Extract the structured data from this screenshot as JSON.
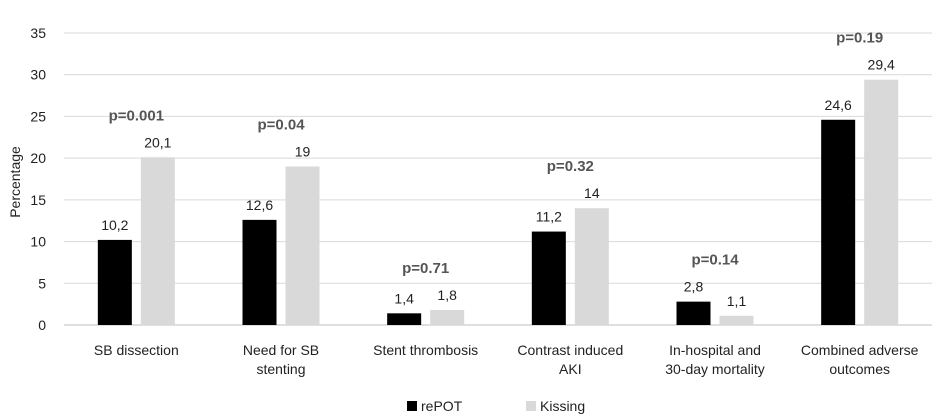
{
  "chart_data": {
    "type": "bar",
    "categories": [
      [
        "SB dissection"
      ],
      [
        "Need for SB",
        "stenting"
      ],
      [
        "Stent thrombosis"
      ],
      [
        "Contrast induced",
        "AKI"
      ],
      [
        "In-hospital and",
        "30-day mortality"
      ],
      [
        "Combined adverse",
        "outcomes"
      ]
    ],
    "series": [
      {
        "name": "rePOT",
        "color": "#000000",
        "values": [
          10.2,
          12.6,
          1.4,
          11.2,
          2.8,
          24.6
        ],
        "labels": [
          "10,2",
          "12,6",
          "1,4",
          "11,2",
          "2,8",
          "24,6"
        ]
      },
      {
        "name": "Kissing",
        "color": "#d9d9d9",
        "values": [
          20.1,
          19,
          1.8,
          14,
          1.1,
          29.4
        ],
        "labels": [
          "20,1",
          "19",
          "1,8",
          "14",
          "1,1",
          "29,4"
        ]
      }
    ],
    "p_values": [
      "p=0.001",
      "p=0.04",
      "p=0.71",
      "p=0.32",
      "p=0.14",
      "p=0.19"
    ],
    "ylabel": "Percentage",
    "ylim": [
      0,
      35
    ],
    "yticks": [
      0,
      5,
      10,
      15,
      20,
      25,
      30,
      35
    ],
    "grid": true,
    "legend_position": "bottom"
  }
}
